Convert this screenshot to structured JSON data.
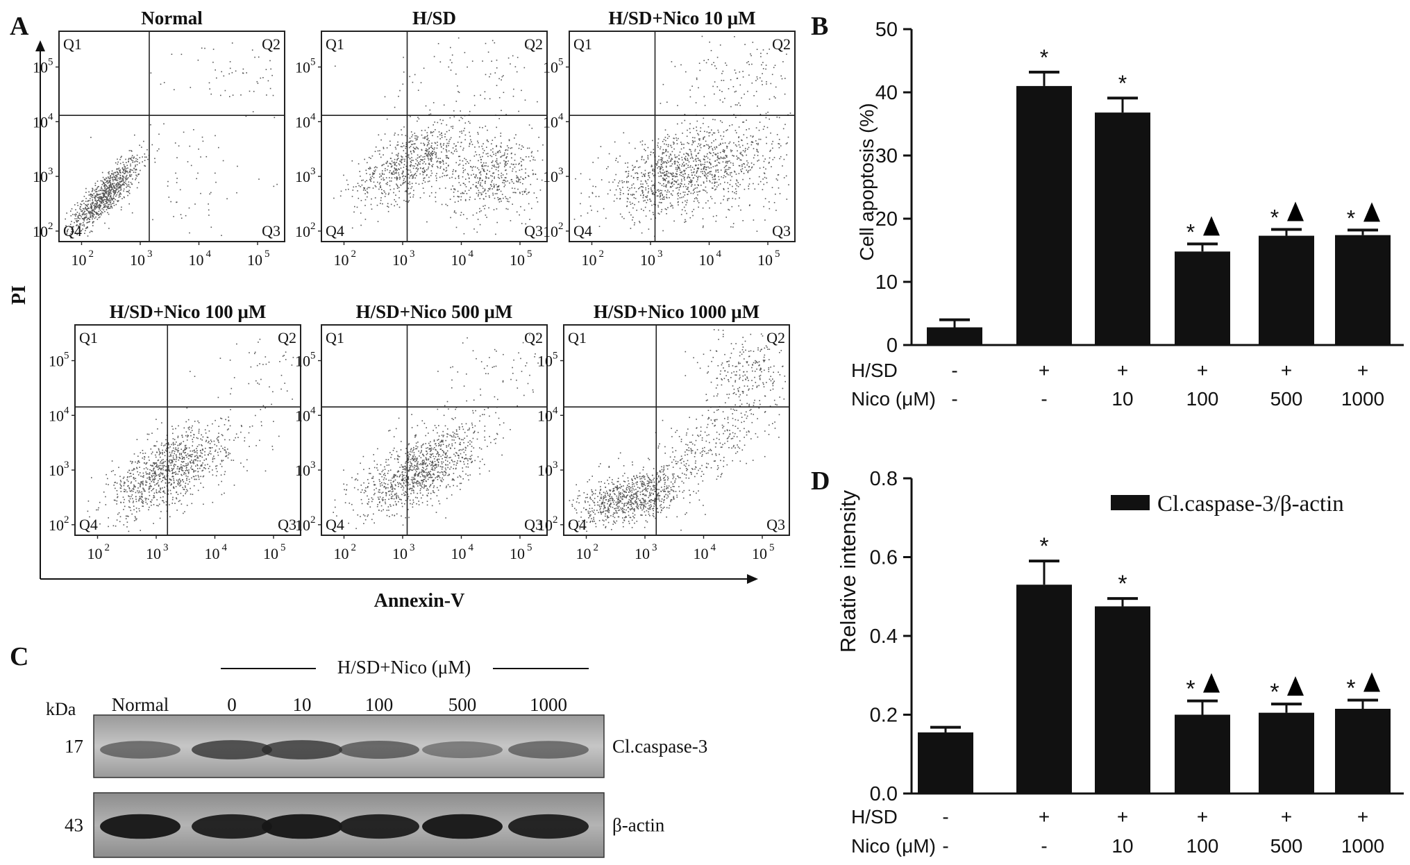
{
  "panel_labels": {
    "A": "A",
    "B": "B",
    "C": "C",
    "D": "D"
  },
  "panel_a": {
    "y_axis_label": "PI",
    "x_axis_label": "Annexin-V",
    "quadrants": [
      "Q1",
      "Q2",
      "Q3",
      "Q4"
    ],
    "tick_labels": [
      "10",
      "10",
      "10",
      "10"
    ],
    "tick_exponents": [
      "2",
      "3",
      "4",
      "5"
    ],
    "plots": [
      {
        "title": "Normal"
      },
      {
        "title": "H/SD"
      },
      {
        "title": "H/SD+Nico 10 μM"
      },
      {
        "title": "H/SD+Nico 100 μM"
      },
      {
        "title": "H/SD+Nico 500 μM"
      },
      {
        "title": "H/SD+Nico 1000 μM"
      }
    ]
  },
  "panel_c": {
    "header": "H/SD+Nico (μM)",
    "kda_label": "kDa",
    "lanes": [
      "Normal",
      "0",
      "10",
      "100",
      "500",
      "1000"
    ],
    "bands": [
      {
        "name": "Cl.caspase-3",
        "kda": "17",
        "intensity": [
          0.45,
          0.65,
          0.65,
          0.5,
          0.35,
          0.45
        ]
      },
      {
        "name": "β-actin",
        "kda": "43",
        "intensity": [
          0.95,
          0.9,
          0.95,
          0.9,
          0.95,
          0.9
        ]
      }
    ]
  },
  "chart_data": [
    {
      "panel": "B",
      "type": "bar",
      "ylabel": "Cell apoptosis (%)",
      "ylim": [
        0,
        50
      ],
      "yticks": [
        "0",
        "10",
        "20",
        "30",
        "40",
        "50"
      ],
      "row_labels": [
        "H/SD",
        "Nico (μM)"
      ],
      "h_sd": [
        "-",
        "+",
        "+",
        "+",
        "+",
        "+"
      ],
      "nico": [
        "-",
        "-",
        "10",
        "100",
        "500",
        "1000"
      ],
      "values": [
        2.8,
        41.0,
        36.8,
        14.8,
        17.3,
        17.4
      ],
      "errors": [
        1.2,
        2.2,
        2.3,
        1.2,
        1.0,
        0.8
      ],
      "marks": [
        "",
        "*",
        "*",
        "*▲",
        "*▲",
        "*▲"
      ]
    },
    {
      "panel": "D",
      "type": "bar",
      "ylabel": "Relative intensity",
      "legend": "Cl.caspase-3/β-actin",
      "ylim": [
        0,
        0.8
      ],
      "yticks": [
        "0.0",
        "0.2",
        "0.4",
        "0.6",
        "0.8"
      ],
      "row_labels": [
        "H/SD",
        "Nico (μM)"
      ],
      "h_sd": [
        "-",
        "+",
        "+",
        "+",
        "+",
        "+"
      ],
      "nico": [
        "-",
        "-",
        "10",
        "100",
        "500",
        "1000"
      ],
      "values": [
        0.155,
        0.53,
        0.475,
        0.2,
        0.205,
        0.215
      ],
      "errors": [
        0.013,
        0.06,
        0.02,
        0.035,
        0.022,
        0.022
      ],
      "marks": [
        "",
        "*",
        "*",
        "*▲",
        "*▲",
        "*▲"
      ]
    }
  ]
}
